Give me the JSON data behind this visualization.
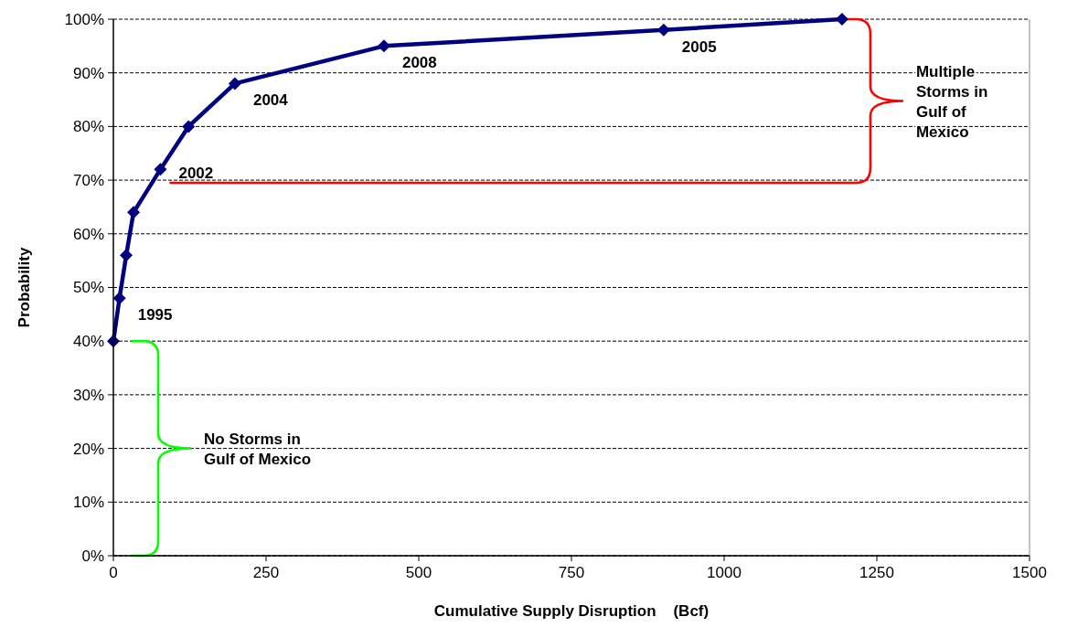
{
  "chart_data": {
    "type": "line",
    "xlabel": "Cumulative Supply Disruption    (Bcf)",
    "ylabel": "Probability",
    "series": [
      {
        "color": "#000080",
        "x": [
          0,
          10,
          21,
          33,
          77,
          123,
          199,
          443,
          901,
          1193
        ],
        "values": [
          40,
          48,
          56,
          64,
          72,
          80,
          88,
          95,
          98,
          100
        ]
      }
    ],
    "xlim": [
      0,
      1500
    ],
    "xticks": [
      0,
      250,
      500,
      750,
      1000,
      1250,
      1500
    ],
    "ylim": [
      0,
      100
    ],
    "yticks": [
      {
        "value": 0,
        "label": "0%"
      },
      {
        "value": 10,
        "label": "10%"
      },
      {
        "value": 20,
        "label": "20%"
      },
      {
        "value": 30,
        "label": "30%"
      },
      {
        "value": 40,
        "label": "40%"
      },
      {
        "value": 50,
        "label": "50%"
      },
      {
        "value": 60,
        "label": "60%"
      },
      {
        "value": 70,
        "label": "70%"
      },
      {
        "value": 80,
        "label": "80%"
      },
      {
        "value": 90,
        "label": "90%"
      },
      {
        "value": 100,
        "label": "100%"
      }
    ],
    "grid": "y",
    "marker": "diamond",
    "line_style": "solid",
    "ref_lines": [
      {
        "axis": "y",
        "value": 69.5,
        "color": "#ff0000"
      }
    ],
    "annotations": [
      "Multiple Storms in Gulf of Mexico",
      "No Storms in Gulf of Mexico",
      {
        "text": "1995",
        "x": 10,
        "y": 48
      },
      {
        "text": "2002",
        "x": 77,
        "y": 72
      },
      {
        "text": "2004",
        "x": 199,
        "y": 88
      },
      {
        "text": "2008",
        "x": 443,
        "y": 95
      },
      {
        "text": "2005",
        "x": 901,
        "y": 98
      }
    ]
  }
}
